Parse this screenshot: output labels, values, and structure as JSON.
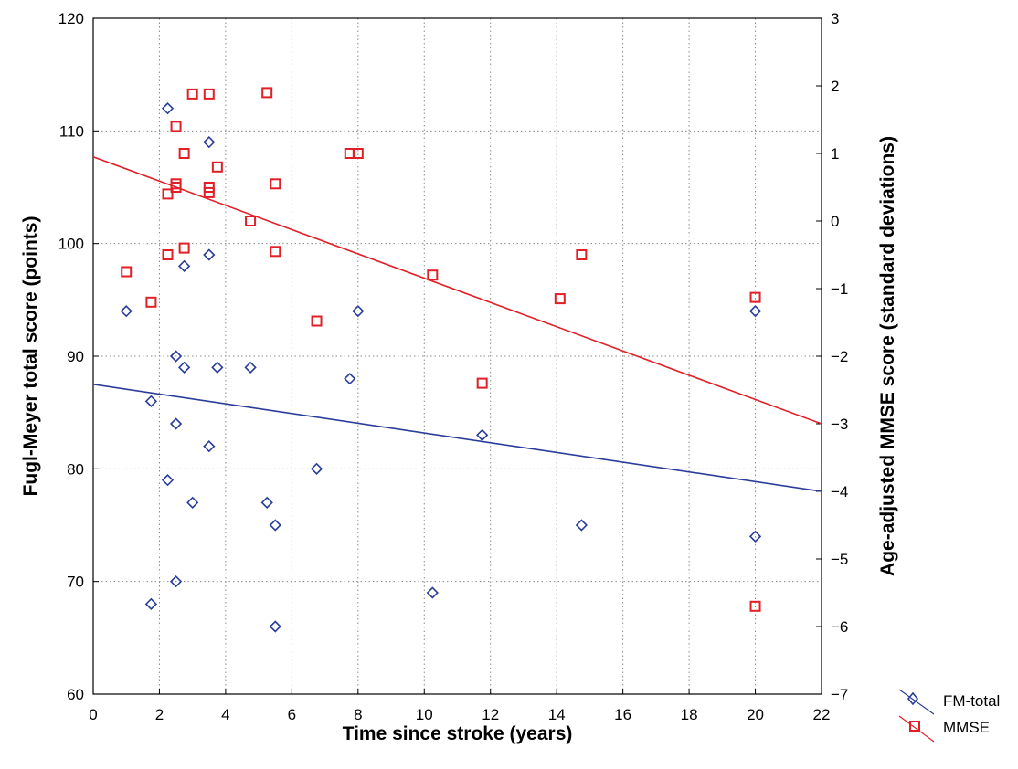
{
  "chart_data": {
    "type": "scatter",
    "xlabel": "Time since stroke (years)",
    "ylabel_left": "Fugl-Meyer total score (points)",
    "ylabel_right": "Age-adjusted MMSE score (standard deviations)",
    "xlim": [
      0,
      22
    ],
    "ylim_left": [
      60,
      120
    ],
    "ylim_right": [
      -7,
      3
    ],
    "x_ticks": [
      "0",
      "2",
      "4",
      "6",
      "8",
      "10",
      "12",
      "14",
      "16",
      "18",
      "20",
      "22"
    ],
    "y_ticks_left": [
      "60",
      "70",
      "80",
      "90",
      "100",
      "110",
      "120"
    ],
    "y_ticks_right": [
      "−7",
      "−6",
      "−5",
      "−4",
      "−3",
      "−2",
      "−1",
      "0",
      "1",
      "2",
      "3"
    ],
    "grid": true,
    "legend_position": "bottom-right outside",
    "series": [
      {
        "name": "FM-total",
        "axis": "left",
        "marker": "diamond",
        "color": "#2a3d9a",
        "points": [
          [
            1.0,
            94
          ],
          [
            1.75,
            86
          ],
          [
            1.75,
            68
          ],
          [
            2.25,
            112
          ],
          [
            2.25,
            79
          ],
          [
            2.5,
            90
          ],
          [
            2.5,
            84
          ],
          [
            2.5,
            70
          ],
          [
            2.75,
            98
          ],
          [
            2.75,
            89
          ],
          [
            3.0,
            77
          ],
          [
            3.5,
            109
          ],
          [
            3.5,
            99
          ],
          [
            3.5,
            82
          ],
          [
            3.75,
            89
          ],
          [
            4.75,
            89
          ],
          [
            5.25,
            77
          ],
          [
            5.5,
            75
          ],
          [
            5.5,
            66
          ],
          [
            6.75,
            80
          ],
          [
            7.75,
            88
          ],
          [
            8.0,
            94
          ],
          [
            10.25,
            69
          ],
          [
            11.75,
            83
          ],
          [
            14.75,
            75
          ],
          [
            20.0,
            94
          ],
          [
            20.0,
            74
          ]
        ],
        "trend": {
          "x": [
            0,
            22
          ],
          "y": [
            87.5,
            78.0
          ]
        }
      },
      {
        "name": "MMSE",
        "axis": "right",
        "marker": "square",
        "color": "#e11f26",
        "points": [
          [
            1.0,
            -0.75
          ],
          [
            1.75,
            -1.2
          ],
          [
            2.25,
            0.4
          ],
          [
            2.25,
            -0.5
          ],
          [
            2.5,
            1.4
          ],
          [
            2.5,
            0.55
          ],
          [
            2.5,
            0.5
          ],
          [
            2.75,
            1.0
          ],
          [
            2.75,
            -0.4
          ],
          [
            3.0,
            1.88
          ],
          [
            3.5,
            1.88
          ],
          [
            3.5,
            0.5
          ],
          [
            3.5,
            0.42
          ],
          [
            3.75,
            0.8
          ],
          [
            4.75,
            0.0
          ],
          [
            5.25,
            1.9
          ],
          [
            5.5,
            0.55
          ],
          [
            5.5,
            -0.45
          ],
          [
            6.75,
            -1.48
          ],
          [
            7.75,
            1.0
          ],
          [
            8.0,
            1.0
          ],
          [
            10.25,
            -0.8
          ],
          [
            11.75,
            -2.4
          ],
          [
            14.1,
            -1.15
          ],
          [
            14.75,
            -0.5
          ],
          [
            20.0,
            -1.13
          ],
          [
            20.0,
            -5.7
          ]
        ],
        "trend": {
          "x": [
            0,
            22
          ],
          "y": [
            0.95,
            -3.0
          ]
        }
      }
    ]
  }
}
